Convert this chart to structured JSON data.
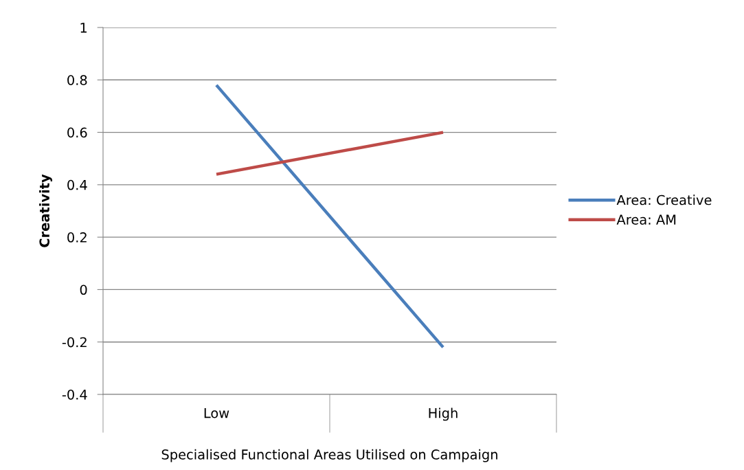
{
  "chart_data": {
    "type": "line",
    "xlabel": "Specialised Functional Areas Utilised on Campaign",
    "ylabel": "Creativity",
    "categories": [
      "Low",
      "High"
    ],
    "series": [
      {
        "name": "Area: Creative",
        "color": "#4a7ebb",
        "values": [
          0.78,
          -0.22
        ]
      },
      {
        "name": "Area: AM",
        "color": "#be4b48",
        "values": [
          0.44,
          0.6
        ]
      }
    ],
    "ylim": [
      -0.4,
      1
    ],
    "yticks": [
      {
        "value": -0.4,
        "label": "-0.4"
      },
      {
        "value": -0.2,
        "label": "-0.2"
      },
      0,
      0.2,
      0.4,
      0.6,
      0.8,
      1
    ],
    "grid": "y",
    "legend": "right",
    "marker": "none",
    "line_style": "solid"
  }
}
